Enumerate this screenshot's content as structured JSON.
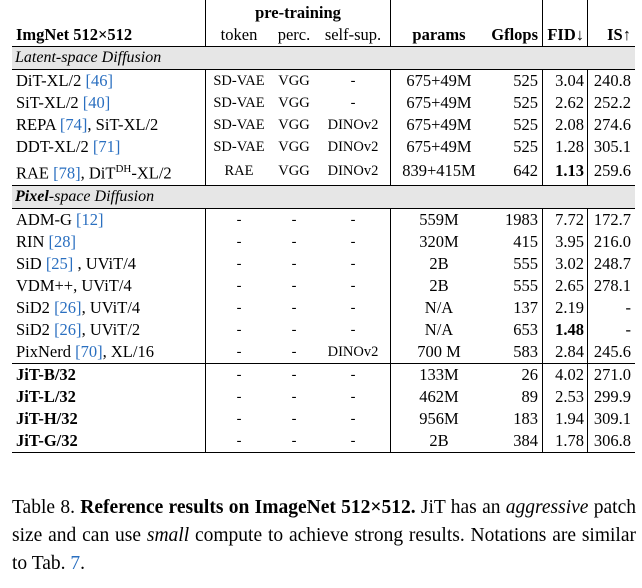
{
  "header": {
    "group_label": "pre-training",
    "col_title": "ImgNet 512×512",
    "col_token": "token",
    "col_perc": "perc.",
    "col_selfsup": "self-sup.",
    "col_params": "params",
    "col_gflops": "Gflops",
    "col_fid": "FID↓",
    "col_is": "IS↑"
  },
  "sections": [
    {
      "title_bold": "",
      "title_rest": "Latent-space Diffusion",
      "rows": [
        {
          "name": "DiT-XL/2 ",
          "ref": "[46]",
          "suffix": "",
          "token": "SD-VAE",
          "perc": "VGG",
          "selfsup": "-",
          "params": "675+49M",
          "gflops": "525",
          "fid": "3.04",
          "is": "240.8",
          "fid_bold": false
        },
        {
          "name": "SiT-XL/2 ",
          "ref": "[40]",
          "suffix": "",
          "token": "SD-VAE",
          "perc": "VGG",
          "selfsup": "-",
          "params": "675+49M",
          "gflops": "525",
          "fid": "2.62",
          "is": "252.2",
          "fid_bold": false
        },
        {
          "name": "REPA ",
          "ref": "[74]",
          "suffix": ", SiT-XL/2",
          "token": "SD-VAE",
          "perc": "VGG",
          "selfsup": "DINOv2",
          "params": "675+49M",
          "gflops": "525",
          "fid": "2.08",
          "is": "274.6",
          "fid_bold": false
        },
        {
          "name": "DDT-XL/2 ",
          "ref": "[71]",
          "suffix": "",
          "token": "SD-VAE",
          "perc": "VGG",
          "selfsup": "DINOv2",
          "params": "675+49M",
          "gflops": "525",
          "fid": "1.28",
          "is": "305.1",
          "fid_bold": false
        },
        {
          "name": "RAE ",
          "ref": "[78]",
          "suffix": ", DiT",
          "sup": "DH",
          "suffix2": "-XL/2",
          "token": "RAE",
          "perc": "VGG",
          "selfsup": "DINOv2",
          "params": "839+415M",
          "gflops": "642",
          "fid": "1.13",
          "is": "259.6",
          "fid_bold": true
        }
      ]
    },
    {
      "title_bold": "Pixel",
      "title_rest": "-space Diffusion",
      "rows": [
        {
          "name": "ADM-G ",
          "ref": "[12]",
          "suffix": "",
          "token": "-",
          "perc": "-",
          "selfsup": "-",
          "params": "559M",
          "gflops": "1983",
          "fid": "7.72",
          "is": "172.7",
          "fid_bold": false
        },
        {
          "name": "RIN ",
          "ref": "[28]",
          "suffix": "",
          "token": "-",
          "perc": "-",
          "selfsup": "-",
          "params": "320M",
          "gflops": "415",
          "fid": "3.95",
          "is": "216.0",
          "fid_bold": false
        },
        {
          "name": "SiD ",
          "ref": "[25]",
          "suffix": " , UViT/4",
          "token": "-",
          "perc": "-",
          "selfsup": "-",
          "params": "2B",
          "gflops": "555",
          "fid": "3.02",
          "is": "248.7",
          "fid_bold": false
        },
        {
          "name": "VDM++, UViT/4",
          "ref": "",
          "suffix": "",
          "token": "-",
          "perc": "-",
          "selfsup": "-",
          "params": "2B",
          "gflops": "555",
          "fid": "2.65",
          "is": "278.1",
          "fid_bold": false
        },
        {
          "name": "SiD2 ",
          "ref": "[26]",
          "suffix": ", UViT/4",
          "token": "-",
          "perc": "-",
          "selfsup": "-",
          "params": "N/A",
          "gflops": "137",
          "fid": "2.19",
          "is": "-",
          "fid_bold": false
        },
        {
          "name": "SiD2 ",
          "ref": "[26]",
          "suffix": ", UViT/2",
          "token": "-",
          "perc": "-",
          "selfsup": "-",
          "params": "N/A",
          "gflops": "653",
          "fid": "1.48",
          "is": "-",
          "fid_bold": true
        },
        {
          "name": "PixNerd ",
          "ref": "[70]",
          "suffix": ", XL/16",
          "token": "-",
          "perc": "-",
          "selfsup": "DINOv2",
          "params": "700 M",
          "gflops": "583",
          "fid": "2.84",
          "is": "245.6",
          "fid_bold": false
        }
      ]
    }
  ],
  "jit_rows": [
    {
      "name": "JiT-B/32",
      "token": "-",
      "perc": "-",
      "selfsup": "-",
      "params": "133M",
      "gflops": "26",
      "fid": "4.02",
      "is": "271.0"
    },
    {
      "name": "JiT-L/32",
      "token": "-",
      "perc": "-",
      "selfsup": "-",
      "params": "462M",
      "gflops": "89",
      "fid": "2.53",
      "is": "299.9"
    },
    {
      "name": "JiT-H/32",
      "token": "-",
      "perc": "-",
      "selfsup": "-",
      "params": "956M",
      "gflops": "183",
      "fid": "1.94",
      "is": "309.1"
    },
    {
      "name": "JiT-G/32",
      "token": "-",
      "perc": "-",
      "selfsup": "-",
      "params": "2B",
      "gflops": "384",
      "fid": "1.78",
      "is": "306.8"
    }
  ],
  "caption": {
    "label": "Table 8. ",
    "bold": "Reference results on ImageNet 512×512.",
    "t1": " JiT has an ",
    "i1": "aggressive",
    "t2": " patch size and can use ",
    "i2": "small",
    "t3": " compute to achieve strong results. Notations are similar to Tab. ",
    "ref": "7",
    "t4": "."
  },
  "colors": {
    "link": "#2a6fc0",
    "section_bg": "#e6e6e6"
  }
}
